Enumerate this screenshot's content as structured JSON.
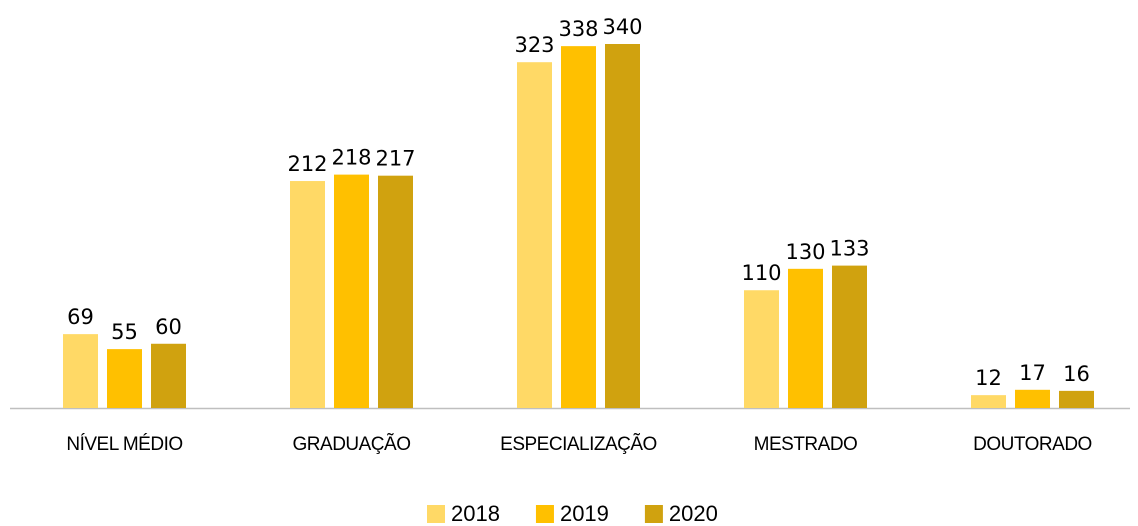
{
  "chart_data": {
    "type": "bar",
    "categories": [
      "NÍVEL MÉDIO",
      "GRADUAÇÃO",
      "ESPECIALIZAÇÃO",
      "MESTRADO",
      "DOUTORADO"
    ],
    "series": [
      {
        "name": "2018",
        "color": "#FFD966",
        "values": [
          69,
          212,
          323,
          110,
          12
        ]
      },
      {
        "name": "2019",
        "color": "#FFC000",
        "values": [
          55,
          218,
          338,
          130,
          17
        ]
      },
      {
        "name": "2020",
        "color": "#D0A20F",
        "values": [
          60,
          217,
          340,
          133,
          16
        ]
      }
    ],
    "legend": "bottom"
  }
}
